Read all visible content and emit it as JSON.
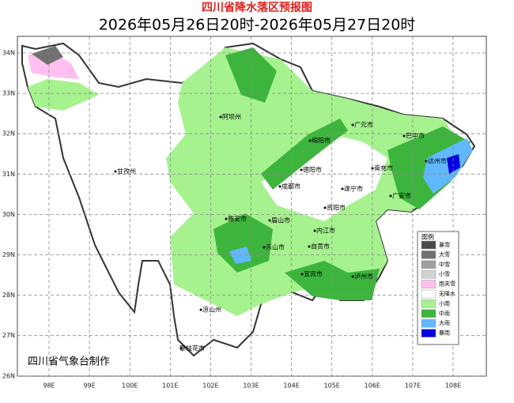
{
  "header": {
    "title": "四川省降水落区预报图",
    "subtitle": "2026年05月26日20时-2026年05月27日20时"
  },
  "map": {
    "lat_labels": [
      "34N",
      "33N",
      "32N",
      "31N",
      "30N",
      "29N",
      "28N",
      "27N",
      "26N"
    ],
    "lon_labels": [
      "98E",
      "99E",
      "100E",
      "101E",
      "102E",
      "103E",
      "104E",
      "105E",
      "106E",
      "107E",
      "108E"
    ],
    "cities": [
      "阿坝州",
      "甘孜州",
      "广元市",
      "绵阳市",
      "巴中市",
      "达州市",
      "南充市",
      "德阳市",
      "成都市",
      "遂宁市",
      "广安市",
      "雅安市",
      "眉山市",
      "资阳市",
      "乐山市",
      "内江市",
      "自贡市",
      "宜宾市",
      "泸州市",
      "凉山州",
      "攀枝花市"
    ],
    "credit": "四川省气象台制作"
  },
  "legend": {
    "title": "图例",
    "items": [
      {
        "label": "暴雪",
        "color": "#4a4a4a"
      },
      {
        "label": "大雪",
        "color": "#707070"
      },
      {
        "label": "中雪",
        "color": "#a0a0a0"
      },
      {
        "label": "小雪",
        "color": "#d2d2d2"
      },
      {
        "label": "雨夹雪",
        "color": "#ffbff0"
      },
      {
        "label": "无降水",
        "color": "#ffffff"
      },
      {
        "label": "小雨",
        "color": "#a6f28f"
      },
      {
        "label": "中雨",
        "color": "#3db53d"
      },
      {
        "label": "大雨",
        "color": "#61b8ff"
      },
      {
        "label": "暴雨",
        "color": "#0000e1"
      }
    ]
  }
}
